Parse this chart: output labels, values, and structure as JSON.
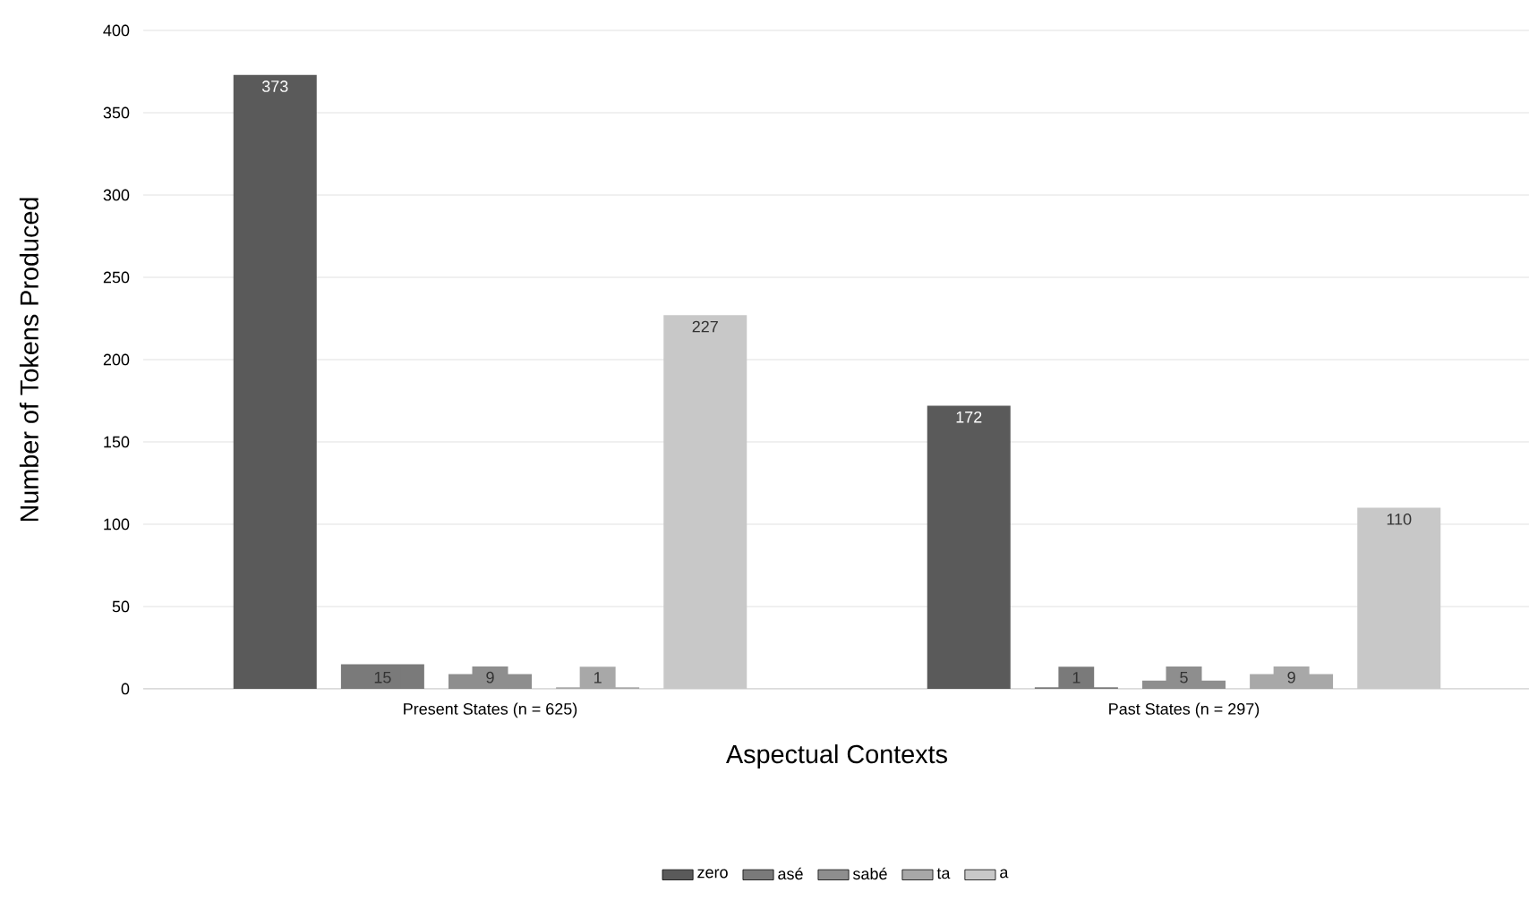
{
  "chart_data": {
    "type": "bar",
    "xlabel": "Aspectual Contexts",
    "ylabel": "Number of Tokens Produced",
    "categories": [
      "Present States (n = 625)",
      "Past States (n = 297)"
    ],
    "series": [
      {
        "name": "zero",
        "color": "#5a5a5a",
        "values": [
          373,
          172
        ]
      },
      {
        "name": "asé",
        "color": "#7a7a7a",
        "values": [
          15,
          1
        ]
      },
      {
        "name": "sabé",
        "color": "#8e8e8e",
        "values": [
          9,
          5
        ]
      },
      {
        "name": "ta",
        "color": "#a8a8a8",
        "values": [
          1,
          9
        ]
      },
      {
        "name": "a",
        "color": "#c8c8c8",
        "values": [
          227,
          110
        ]
      }
    ],
    "ylim": [
      0,
      400
    ],
    "yticks": [
      0,
      50,
      100,
      150,
      200,
      250,
      300,
      350,
      400
    ],
    "grid": "y",
    "legend": "bottom",
    "data_labels": true
  }
}
